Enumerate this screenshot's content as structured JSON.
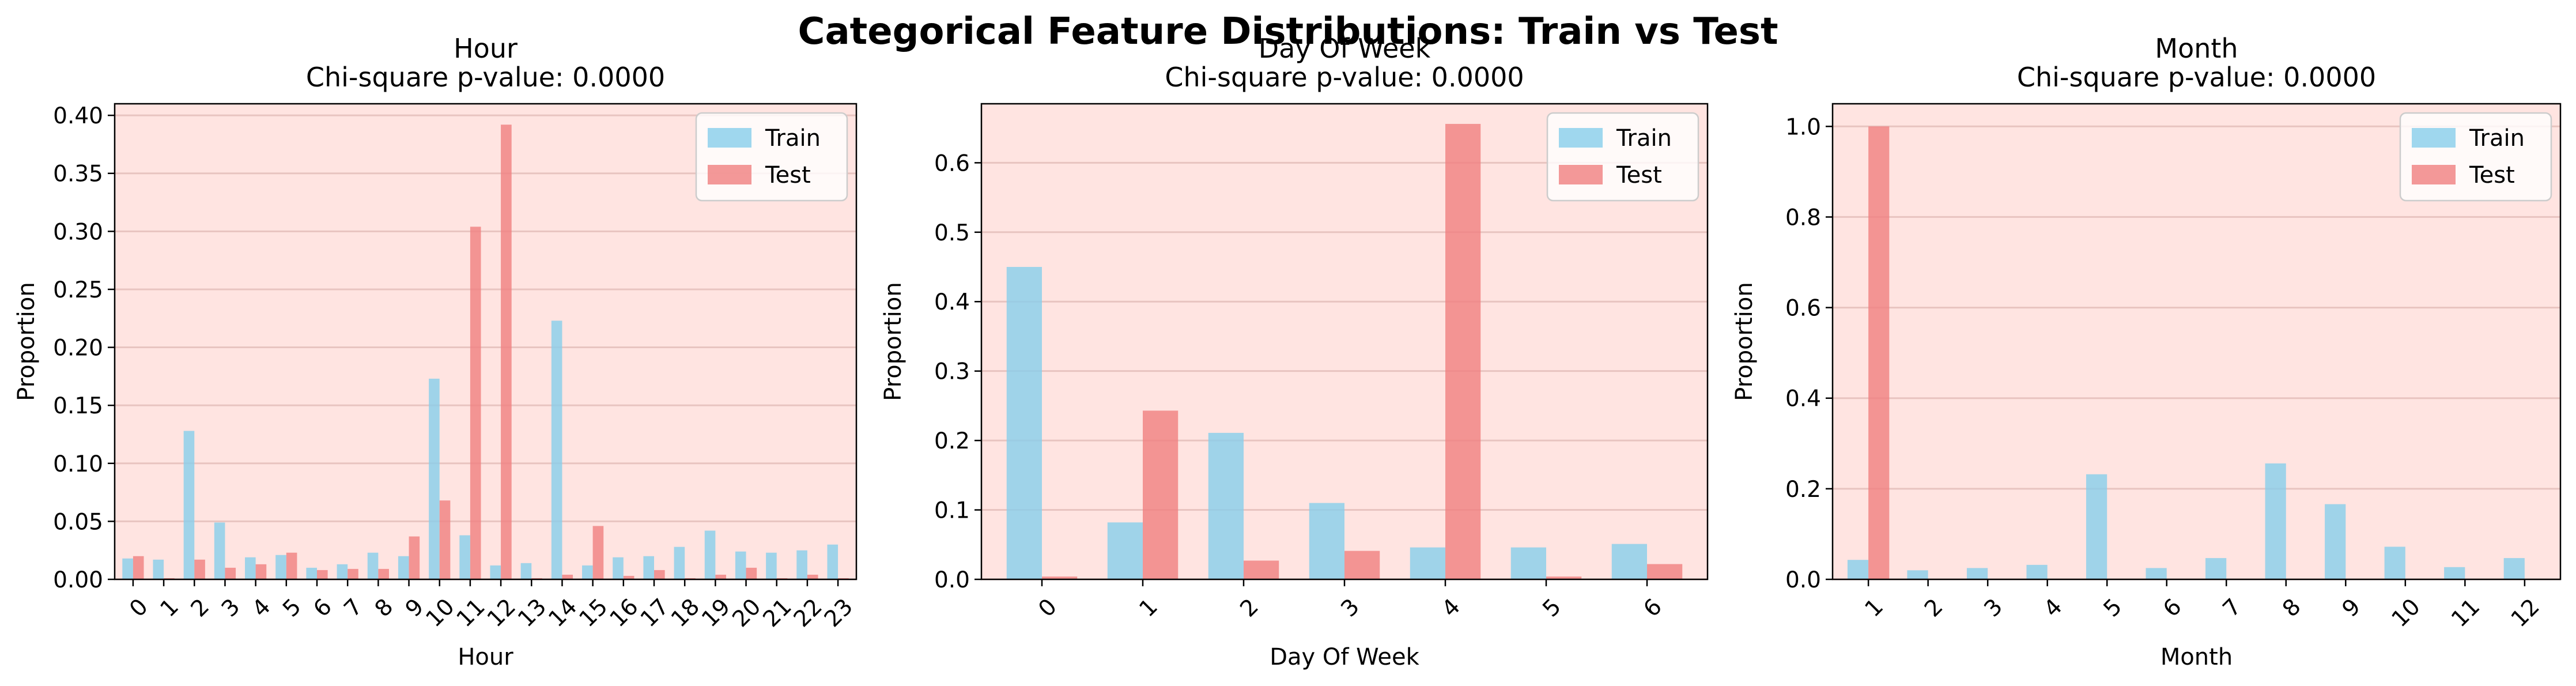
{
  "figure": {
    "title": "Categorical Feature Distributions: Train vs Test"
  },
  "colors": {
    "train": "#87ceeb",
    "test": "#f08080",
    "axes_bg": "#ffe4e1",
    "grid": "#e8c4c0"
  },
  "legend": {
    "train": "Train",
    "test": "Test",
    "placement": "upper right"
  },
  "chart_data": [
    {
      "type": "bar",
      "title": "Hour",
      "subtitle": "Chi-square p-value: 0.0000",
      "xlabel": "Hour",
      "ylabel": "Proportion",
      "ylim": [
        0,
        0.41
      ],
      "yticks": [
        0.0,
        0.05,
        0.1,
        0.15,
        0.2,
        0.25,
        0.3,
        0.35,
        0.4
      ],
      "ytick_labels": [
        "0.00",
        "0.05",
        "0.10",
        "0.15",
        "0.20",
        "0.25",
        "0.30",
        "0.35",
        "0.40"
      ],
      "tick_rotation": 45,
      "grid": "y",
      "categories": [
        "0",
        "1",
        "2",
        "3",
        "4",
        "5",
        "6",
        "7",
        "8",
        "9",
        "10",
        "11",
        "12",
        "13",
        "14",
        "15",
        "16",
        "17",
        "18",
        "19",
        "20",
        "21",
        "22",
        "23"
      ],
      "series": [
        {
          "name": "Train",
          "values": [
            0.018,
            0.017,
            0.128,
            0.049,
            0.019,
            0.021,
            0.01,
            0.013,
            0.023,
            0.02,
            0.173,
            0.038,
            0.012,
            0.014,
            0.223,
            0.012,
            0.019,
            0.02,
            0.028,
            0.042,
            0.024,
            0.023,
            0.025,
            0.03
          ]
        },
        {
          "name": "Test",
          "values": [
            0.02,
            0.001,
            0.017,
            0.01,
            0.013,
            0.023,
            0.008,
            0.009,
            0.009,
            0.037,
            0.068,
            0.304,
            0.392,
            0.001,
            0.004,
            0.046,
            0.003,
            0.008,
            0.001,
            0.004,
            0.01,
            0.001,
            0.004,
            0.001
          ]
        }
      ]
    },
    {
      "type": "bar",
      "title": "Day Of Week",
      "subtitle": "Chi-square p-value: 0.0000",
      "xlabel": "Day Of Week",
      "ylabel": "Proportion",
      "ylim": [
        0,
        0.685
      ],
      "yticks": [
        0.0,
        0.1,
        0.2,
        0.3,
        0.4,
        0.5,
        0.6
      ],
      "ytick_labels": [
        "0.0",
        "0.1",
        "0.2",
        "0.3",
        "0.4",
        "0.5",
        "0.6"
      ],
      "tick_rotation": 45,
      "grid": "y",
      "categories": [
        "0",
        "1",
        "2",
        "3",
        "4",
        "5",
        "6"
      ],
      "series": [
        {
          "name": "Train",
          "values": [
            0.45,
            0.082,
            0.211,
            0.11,
            0.046,
            0.046,
            0.051
          ]
        },
        {
          "name": "Test",
          "values": [
            0.004,
            0.243,
            0.027,
            0.041,
            0.656,
            0.004,
            0.022
          ]
        }
      ]
    },
    {
      "type": "bar",
      "title": "Month",
      "subtitle": "Chi-square p-value: 0.0000",
      "xlabel": "Month",
      "ylabel": "Proportion",
      "ylim": [
        0,
        1.05
      ],
      "yticks": [
        0.0,
        0.2,
        0.4,
        0.6,
        0.8,
        1.0
      ],
      "ytick_labels": [
        "0.0",
        "0.2",
        "0.4",
        "0.6",
        "0.8",
        "1.0"
      ],
      "tick_rotation": 45,
      "grid": "y",
      "categories": [
        "1",
        "2",
        "3",
        "4",
        "5",
        "6",
        "7",
        "8",
        "9",
        "10",
        "11",
        "12"
      ],
      "series": [
        {
          "name": "Train",
          "values": [
            0.043,
            0.02,
            0.025,
            0.032,
            0.232,
            0.025,
            0.047,
            0.256,
            0.166,
            0.072,
            0.027,
            0.047
          ]
        },
        {
          "name": "Test",
          "values": [
            1.0,
            0,
            0,
            0,
            0,
            0,
            0,
            0,
            0,
            0,
            0,
            0
          ]
        }
      ]
    }
  ]
}
